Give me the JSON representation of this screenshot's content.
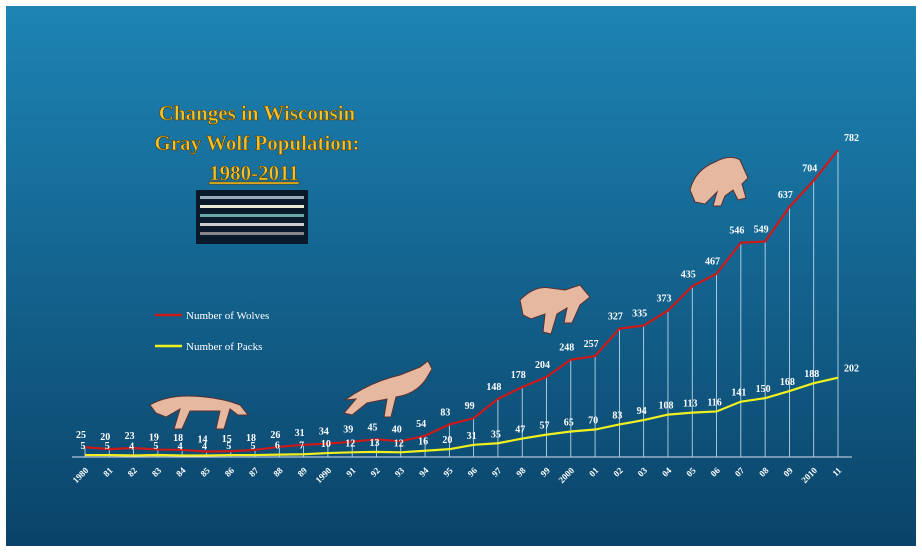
{
  "chart_data": {
    "type": "line",
    "title": [
      "Changes in Wisconsin",
      "Gray Wolf Population:",
      "1980-2011"
    ],
    "categories": [
      "1980",
      "81",
      "82",
      "83",
      "84",
      "85",
      "86",
      "87",
      "88",
      "89",
      "1990",
      "91",
      "92",
      "93",
      "94",
      "95",
      "96",
      "97",
      "98",
      "99",
      "2000",
      "01",
      "02",
      "03",
      "04",
      "05",
      "06",
      "07",
      "08",
      "09",
      "2010",
      "11"
    ],
    "series": [
      {
        "name": "Number of Wolves",
        "color": "#cc1a1a",
        "values": [
          25,
          20,
          23,
          19,
          18,
          14,
          15,
          18,
          26,
          31,
          34,
          39,
          45,
          40,
          54,
          83,
          99,
          148,
          178,
          204,
          248,
          257,
          327,
          335,
          373,
          435,
          467,
          546,
          549,
          637,
          704,
          782
        ]
      },
      {
        "name": "Number of Packs",
        "color": "#f0f020",
        "values": [
          5,
          5,
          4,
          5,
          4,
          4,
          5,
          5,
          6,
          7,
          10,
          12,
          13,
          12,
          16,
          20,
          31,
          35,
          47,
          57,
          65,
          70,
          83,
          94,
          108,
          113,
          116,
          141,
          150,
          168,
          188,
          202
        ]
      }
    ],
    "ylim": [
      0,
      800
    ]
  }
}
